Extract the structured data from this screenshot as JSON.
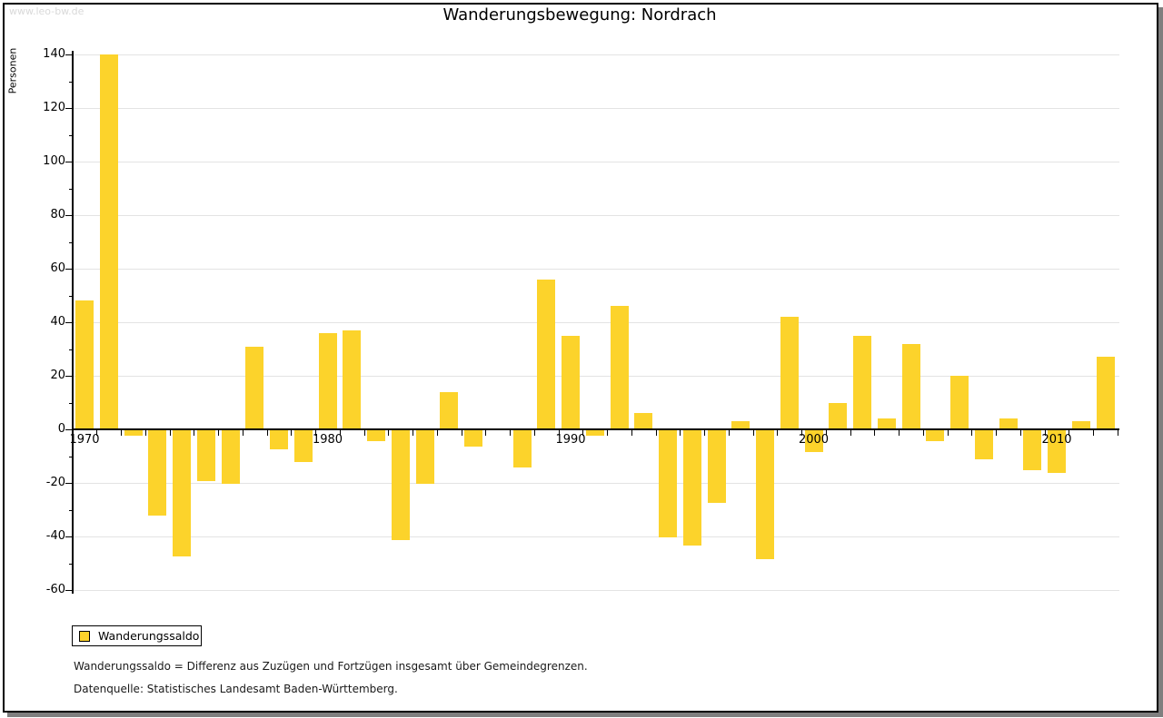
{
  "watermark": "www.leo-bw.de",
  "title": "Wanderungsbewegung: Nordrach",
  "y_axis": {
    "label": "Personen",
    "tick_values": [
      140,
      120,
      100,
      80,
      60,
      40,
      20,
      0,
      -20,
      -40,
      -60
    ],
    "minor_tick_values": [
      130,
      110,
      90,
      70,
      50,
      30,
      10,
      -10,
      -30,
      -50
    ]
  },
  "x_axis": {
    "decade_labels": [
      "1970",
      "1980",
      "1990",
      "2000",
      "2010"
    ]
  },
  "legend": {
    "label": "Wanderungssaldo"
  },
  "footnotes": [
    "Wanderungssaldo = Differenz aus Zuzügen und Fortzügen insgesamt über Gemeindegrenzen.",
    "Datenquelle: Statistisches Landesamt Baden-Württemberg."
  ],
  "colors": {
    "bar": "#fcd32b",
    "grid": "#e3e3e3",
    "axis": "#000000",
    "watermark": "#d9d9d9",
    "frame_shadow": "#7f7f7f"
  },
  "chart_data": {
    "type": "bar",
    "title": "Wanderungsbewegung: Nordrach",
    "series_name": "Wanderungssaldo",
    "xlabel": "",
    "ylabel": "Personen",
    "ylim": [
      -60,
      140
    ],
    "grid": true,
    "legend_position": "bottom-left",
    "x": [
      1970,
      1971,
      1972,
      1973,
      1974,
      1975,
      1976,
      1977,
      1978,
      1979,
      1980,
      1981,
      1982,
      1983,
      1984,
      1985,
      1986,
      1987,
      1988,
      1989,
      1990,
      1991,
      1992,
      1993,
      1994,
      1995,
      1996,
      1997,
      1998,
      1999,
      2000,
      2001,
      2002,
      2003,
      2004,
      2005,
      2006,
      2007,
      2008,
      2009,
      2010,
      2011,
      2012
    ],
    "values": [
      48,
      140,
      -2,
      -32,
      -47,
      -19,
      -20,
      31,
      -7,
      -12,
      36,
      37,
      -4,
      -41,
      -20,
      14,
      -6,
      0,
      -14,
      56,
      35,
      -2,
      46,
      6,
      -40,
      -43,
      -27,
      3,
      -48,
      42,
      -8,
      10,
      35,
      4,
      32,
      -4,
      20,
      -11,
      4,
      -15,
      -16,
      3,
      27
    ]
  }
}
